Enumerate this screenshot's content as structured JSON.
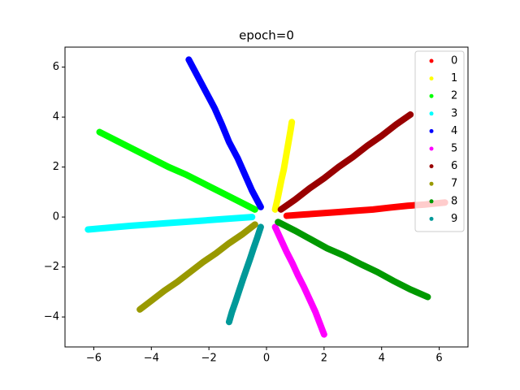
{
  "chart_data": {
    "type": "scatter",
    "title": "epoch=0",
    "xlim": [
      -7,
      7
    ],
    "xticks": [
      {
        "value": -6,
        "label": "−6"
      },
      {
        "value": -4,
        "label": "−4"
      },
      {
        "value": -2,
        "label": "−2"
      },
      0,
      2,
      4,
      6
    ],
    "ylim": [
      -5.2,
      6.8
    ],
    "yticks": [
      {
        "value": -4,
        "label": "−4"
      },
      {
        "value": -2,
        "label": "−2"
      },
      0,
      2,
      4,
      6
    ],
    "legend": "upper right",
    "series": [
      {
        "name": "0",
        "color": "#ff0000",
        "x": [
          0.7,
          1.3,
          1.9,
          2.5,
          3.1,
          3.7,
          4.3,
          4.9,
          5.5,
          6.2
        ],
        "values": [
          0.05,
          0.1,
          0.15,
          0.2,
          0.25,
          0.3,
          0.38,
          0.45,
          0.5,
          0.58
        ]
      },
      {
        "name": "1",
        "color": "#ffff00",
        "x": [
          0.3,
          0.38,
          0.45,
          0.52,
          0.6,
          0.66,
          0.72,
          0.78,
          0.84,
          0.88
        ],
        "values": [
          0.3,
          0.7,
          1.1,
          1.5,
          1.9,
          2.3,
          2.7,
          3.1,
          3.5,
          3.8
        ]
      },
      {
        "name": "2",
        "color": "#00ff00",
        "x": [
          -0.4,
          -1.0,
          -1.6,
          -2.2,
          -2.8,
          -3.4,
          -4.0,
          -4.6,
          -5.2,
          -5.8
        ],
        "values": [
          0.3,
          0.65,
          1.0,
          1.35,
          1.7,
          2.0,
          2.35,
          2.7,
          3.05,
          3.4
        ]
      },
      {
        "name": "3",
        "color": "#00ffff",
        "x": [
          -0.5,
          -1.1,
          -1.7,
          -2.3,
          -2.9,
          -3.5,
          -4.1,
          -4.7,
          -5.4,
          -6.2
        ],
        "values": [
          0,
          -0.05,
          -0.1,
          -0.15,
          -0.2,
          -0.25,
          -0.3,
          -0.35,
          -0.42,
          -0.5
        ]
      },
      {
        "name": "4",
        "color": "#0000ff",
        "x": [
          -0.2,
          -0.5,
          -0.75,
          -1.0,
          -1.3,
          -1.55,
          -1.8,
          -2.1,
          -2.4,
          -2.7
        ],
        "values": [
          0.4,
          1.05,
          1.7,
          2.35,
          3.0,
          3.7,
          4.35,
          5.0,
          5.65,
          6.3
        ]
      },
      {
        "name": "5",
        "color": "#ff00ff",
        "x": [
          0.3,
          0.5,
          0.7,
          0.9,
          1.1,
          1.3,
          1.5,
          1.7,
          1.85,
          2.0
        ],
        "values": [
          -0.4,
          -0.9,
          -1.4,
          -1.85,
          -2.35,
          -2.8,
          -3.3,
          -3.8,
          -4.25,
          -4.7
        ]
      },
      {
        "name": "6",
        "color": "#990000",
        "x": [
          0.5,
          1.0,
          1.5,
          2.0,
          2.5,
          3.0,
          3.5,
          4.0,
          4.5,
          5.0
        ],
        "values": [
          0.3,
          0.7,
          1.15,
          1.55,
          2.0,
          2.4,
          2.85,
          3.25,
          3.7,
          4.1
        ]
      },
      {
        "name": "7",
        "color": "#999900",
        "x": [
          -0.4,
          -0.85,
          -1.3,
          -1.75,
          -2.2,
          -2.65,
          -3.1,
          -3.55,
          -4.0,
          -4.4
        ],
        "values": [
          -0.3,
          -0.7,
          -1.05,
          -1.45,
          -1.8,
          -2.2,
          -2.6,
          -2.95,
          -3.35,
          -3.7
        ]
      },
      {
        "name": "8",
        "color": "#009900",
        "x": [
          0.4,
          1.0,
          1.55,
          2.1,
          2.7,
          3.3,
          3.85,
          4.4,
          5.0,
          5.6
        ],
        "values": [
          -0.2,
          -0.55,
          -0.9,
          -1.25,
          -1.55,
          -1.9,
          -2.2,
          -2.55,
          -2.9,
          -3.2
        ]
      },
      {
        "name": "9",
        "color": "#009999",
        "x": [
          -0.2,
          -0.32,
          -0.45,
          -0.57,
          -0.7,
          -0.82,
          -0.95,
          -1.07,
          -1.2,
          -1.3
        ],
        "values": [
          -0.4,
          -0.82,
          -1.25,
          -1.67,
          -2.1,
          -2.5,
          -2.95,
          -3.37,
          -3.8,
          -4.2
        ]
      }
    ]
  }
}
